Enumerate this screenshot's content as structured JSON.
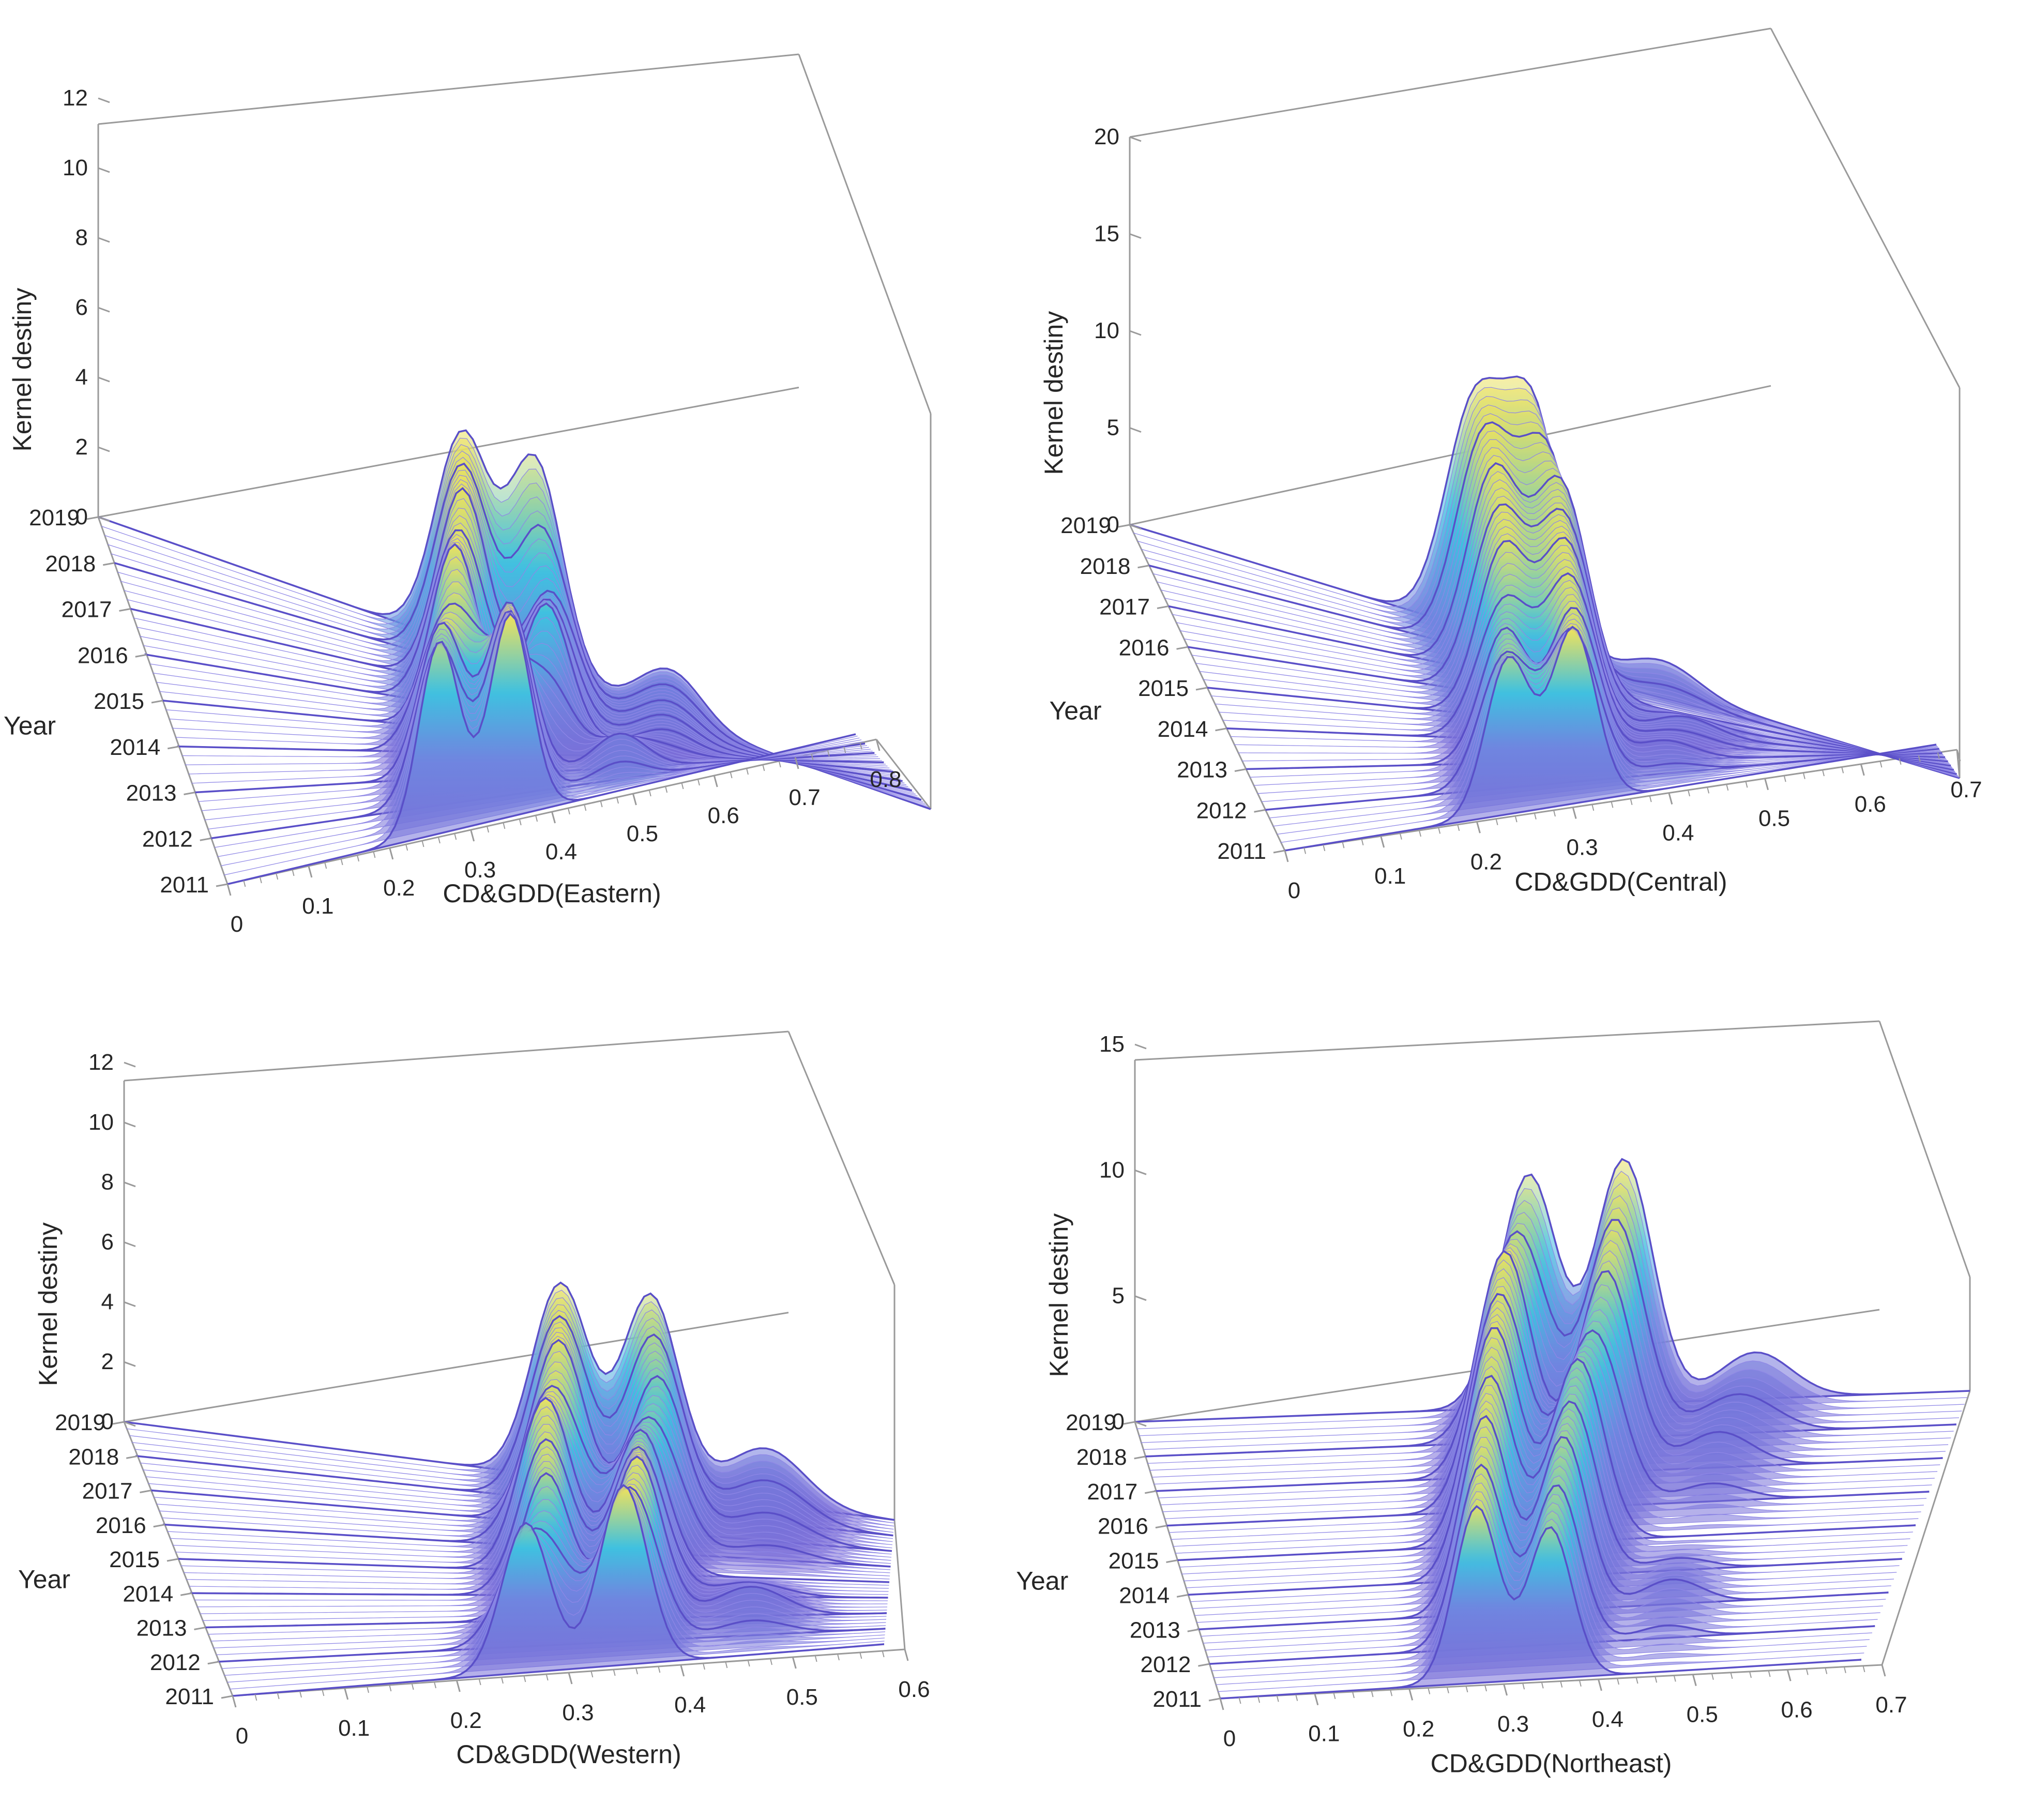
{
  "figure": {
    "colors": {
      "low": "#7b68d6",
      "mid": "#3fc1e0",
      "high": "#f2e25a",
      "line": "#5a4fc8",
      "box": "#9a9a9a"
    }
  },
  "chart_data": [
    {
      "type": "surface3d",
      "title": "",
      "xlabel": "CD&GDD(Eastern)",
      "ylabel": "Year",
      "zlabel": "Kernel destiny",
      "xlim": [
        0,
        0.8
      ],
      "zlim": [
        0,
        12
      ],
      "x_ticks": [
        "0",
        "0.1",
        "0.2",
        "0.3",
        "0.4",
        "0.5",
        "0.6",
        "0.7",
        "0.8"
      ],
      "z_ticks": [
        "0",
        "2",
        "4",
        "6",
        "8",
        "10",
        "12"
      ],
      "years": [
        "2011",
        "2012",
        "2013",
        "2014",
        "2015",
        "2016",
        "2017",
        "2018",
        "2019"
      ],
      "approx_density_peaks": [
        {
          "year": "2011",
          "peaks": [
            [
              0.27,
              5.5
            ],
            [
              0.36,
              5.8
            ]
          ]
        },
        {
          "year": "2013",
          "peaks": [
            [
              0.29,
              4.5
            ],
            [
              0.37,
              5.0
            ],
            [
              0.5,
              1.0
            ]
          ]
        },
        {
          "year": "2015",
          "peaks": [
            [
              0.32,
              5.5
            ],
            [
              0.42,
              4.0
            ],
            [
              0.55,
              0.6
            ]
          ]
        },
        {
          "year": "2017",
          "peaks": [
            [
              0.34,
              6.0
            ],
            [
              0.43,
              3.5
            ],
            [
              0.55,
              1.0
            ]
          ]
        },
        {
          "year": "2019",
          "peaks": [
            [
              0.35,
              6.5
            ],
            [
              0.42,
              6.5
            ],
            [
              0.55,
              1.5
            ]
          ]
        }
      ]
    },
    {
      "type": "surface3d",
      "title": "",
      "xlabel": "CD&GDD(Central)",
      "ylabel": "Year",
      "zlabel": "Kernel destiny",
      "xlim": [
        0,
        0.7
      ],
      "zlim": [
        0,
        20
      ],
      "x_ticks": [
        "0",
        "0.1",
        "0.2",
        "0.3",
        "0.4",
        "0.5",
        "0.6",
        "0.7"
      ],
      "z_ticks": [
        "0",
        "5",
        "10",
        "15",
        "20"
      ],
      "years": [
        "2011",
        "2012",
        "2013",
        "2014",
        "2015",
        "2016",
        "2017",
        "2018",
        "2019"
      ],
      "approx_density_peaks": [
        {
          "year": "2011",
          "peaks": [
            [
              0.24,
              8.0
            ],
            [
              0.31,
              9.0
            ]
          ]
        },
        {
          "year": "2013",
          "peaks": [
            [
              0.26,
              7.0
            ],
            [
              0.33,
              8.0
            ],
            [
              0.42,
              1.0
            ]
          ]
        },
        {
          "year": "2015",
          "peaks": [
            [
              0.28,
              9.0
            ],
            [
              0.34,
              9.5
            ],
            [
              0.45,
              1.0
            ]
          ]
        },
        {
          "year": "2017",
          "peaks": [
            [
              0.29,
              11.0
            ],
            [
              0.35,
              11.0
            ]
          ]
        },
        {
          "year": "2019",
          "peaks": [
            [
              0.29,
              12.0
            ],
            [
              0.34,
              13.0
            ],
            [
              0.45,
              1.5
            ]
          ]
        }
      ]
    },
    {
      "type": "surface3d",
      "title": "",
      "xlabel": "CD&GDD(Western)",
      "ylabel": "Year",
      "zlabel": "Kernel destiny",
      "xlim": [
        0,
        0.6
      ],
      "zlim": [
        0,
        12
      ],
      "x_ticks": [
        "0",
        "0.1",
        "0.2",
        "0.3",
        "0.4",
        "0.5",
        "0.6"
      ],
      "z_ticks": [
        "0",
        "2",
        "4",
        "6",
        "8",
        "10",
        "12"
      ],
      "years": [
        "2011",
        "2012",
        "2013",
        "2014",
        "2015",
        "2016",
        "2017",
        "2018",
        "2019"
      ],
      "approx_density_peaks": [
        {
          "year": "2011",
          "peaks": [
            [
              0.27,
              5.0
            ],
            [
              0.36,
              6.0
            ]
          ]
        },
        {
          "year": "2013",
          "peaks": [
            [
              0.3,
              5.0
            ],
            [
              0.38,
              5.5
            ],
            [
              0.48,
              1.0
            ]
          ]
        },
        {
          "year": "2015",
          "peaks": [
            [
              0.31,
              6.0
            ],
            [
              0.39,
              5.0
            ]
          ]
        },
        {
          "year": "2017",
          "peaks": [
            [
              0.33,
              6.5
            ],
            [
              0.41,
              5.5
            ],
            [
              0.5,
              1.0
            ]
          ]
        },
        {
          "year": "2019",
          "peaks": [
            [
              0.34,
              7.0
            ],
            [
              0.41,
              7.0
            ],
            [
              0.5,
              2.0
            ]
          ]
        }
      ]
    },
    {
      "type": "surface3d",
      "title": "",
      "xlabel": "CD&GDD(Northeast)",
      "ylabel": "Year",
      "zlabel": "Kernel destiny",
      "xlim": [
        0,
        0.7
      ],
      "zlim": [
        0,
        15
      ],
      "x_ticks": [
        "0",
        "0.1",
        "0.2",
        "0.3",
        "0.4",
        "0.5",
        "0.6",
        "0.7"
      ],
      "z_ticks": [
        "0",
        "5",
        "10",
        "15"
      ],
      "years": [
        "2011",
        "2012",
        "2013",
        "2014",
        "2015",
        "2016",
        "2017",
        "2018",
        "2019"
      ],
      "approx_density_peaks": [
        {
          "year": "2011",
          "peaks": [
            [
              0.28,
              7.0
            ],
            [
              0.36,
              6.0
            ]
          ]
        },
        {
          "year": "2013",
          "peaks": [
            [
              0.29,
              8.0
            ],
            [
              0.37,
              7.0
            ],
            [
              0.48,
              1.0
            ]
          ]
        },
        {
          "year": "2015",
          "peaks": [
            [
              0.3,
              9.0
            ],
            [
              0.38,
              7.5
            ]
          ]
        },
        {
          "year": "2017",
          "peaks": [
            [
              0.31,
              9.5
            ],
            [
              0.4,
              8.5
            ],
            [
              0.5,
              1.5
            ]
          ]
        },
        {
          "year": "2019",
          "peaks": [
            [
              0.33,
              10.0
            ],
            [
              0.41,
              10.5
            ],
            [
              0.52,
              2.0
            ]
          ]
        }
      ]
    }
  ]
}
